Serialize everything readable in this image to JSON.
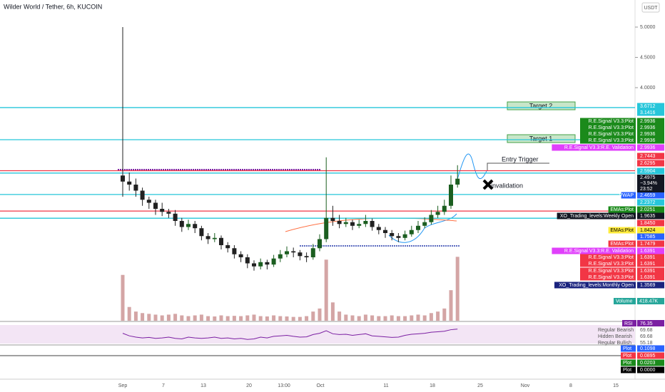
{
  "chart_data": {
    "type": "candlestick",
    "title": "Wilder World / Tether, 6h, KUCOIN",
    "currency": "USDT",
    "ylim": [
      0.153,
      5.447
    ],
    "yticks": [
      {
        "value": 4,
        "label": "4.0000"
      },
      {
        "value": 4.5,
        "label": "4.5000"
      },
      {
        "value": 5,
        "label": "5.0000"
      }
    ],
    "xtick_labels": [
      "Sep",
      "7",
      "13",
      "20",
      "13:00",
      "Oct",
      "11",
      "18",
      "25",
      "Nov",
      "8",
      "15"
    ],
    "up_color": "#1b5e20",
    "down_color": "#212121",
    "ohlc": [
      [
        2.55,
        5.0,
        2.2,
        2.45
      ],
      [
        2.45,
        2.6,
        2.3,
        2.4
      ],
      [
        2.4,
        2.5,
        2.2,
        2.3
      ],
      [
        2.3,
        2.35,
        2.05,
        2.15
      ],
      [
        2.15,
        2.2,
        2.0,
        2.1
      ],
      [
        2.1,
        2.15,
        1.9,
        2.0
      ],
      [
        2.0,
        2.1,
        1.88,
        1.95
      ],
      [
        1.95,
        2.0,
        1.85,
        1.92
      ],
      [
        1.92,
        1.98,
        1.72,
        1.8
      ],
      [
        1.8,
        1.85,
        1.62,
        1.7
      ],
      [
        1.7,
        1.82,
        1.65,
        1.75
      ],
      [
        1.75,
        1.8,
        1.6,
        1.68
      ],
      [
        1.68,
        1.72,
        1.48,
        1.55
      ],
      [
        1.55,
        1.6,
        1.42,
        1.5
      ],
      [
        1.5,
        1.6,
        1.45,
        1.52
      ],
      [
        1.52,
        1.56,
        1.33,
        1.4
      ],
      [
        1.4,
        1.45,
        1.28,
        1.35
      ],
      [
        1.35,
        1.4,
        1.18,
        1.25
      ],
      [
        1.25,
        1.3,
        1.12,
        1.2
      ],
      [
        1.2,
        1.25,
        1.02,
        1.1
      ],
      [
        1.1,
        1.15,
        0.98,
        1.05
      ],
      [
        1.05,
        1.18,
        1.0,
        1.12
      ],
      [
        1.12,
        1.16,
        1.0,
        1.08
      ],
      [
        1.08,
        1.24,
        1.04,
        1.18
      ],
      [
        1.18,
        1.32,
        1.12,
        1.25
      ],
      [
        1.25,
        1.38,
        1.2,
        1.3
      ],
      [
        1.3,
        1.36,
        1.2,
        1.28
      ],
      [
        1.28,
        1.32,
        1.15,
        1.22
      ],
      [
        1.22,
        1.28,
        1.12,
        1.2
      ],
      [
        1.2,
        1.42,
        1.16,
        1.35
      ],
      [
        1.35,
        1.58,
        1.3,
        1.5
      ],
      [
        1.5,
        2.85,
        1.45,
        1.85
      ],
      [
        1.85,
        2.05,
        1.72,
        1.8
      ],
      [
        1.8,
        1.9,
        1.68,
        1.75
      ],
      [
        1.75,
        1.85,
        1.7,
        1.78
      ],
      [
        1.78,
        1.82,
        1.65,
        1.72
      ],
      [
        1.72,
        1.82,
        1.68,
        1.75
      ],
      [
        1.75,
        1.9,
        1.7,
        1.8
      ],
      [
        1.8,
        1.84,
        1.64,
        1.7
      ],
      [
        1.7,
        1.75,
        1.58,
        1.65
      ],
      [
        1.65,
        1.7,
        1.52,
        1.6
      ],
      [
        1.6,
        1.65,
        1.48,
        1.55
      ],
      [
        1.55,
        1.6,
        1.45,
        1.52
      ],
      [
        1.52,
        1.64,
        1.48,
        1.58
      ],
      [
        1.58,
        1.72,
        1.54,
        1.65
      ],
      [
        1.65,
        1.8,
        1.6,
        1.72
      ],
      [
        1.72,
        1.86,
        1.68,
        1.78
      ],
      [
        1.78,
        1.98,
        1.74,
        1.9
      ],
      [
        1.9,
        2.05,
        1.85,
        1.95
      ],
      [
        1.95,
        2.15,
        1.9,
        2.05
      ],
      [
        2.05,
        2.55,
        2.0,
        2.4
      ],
      [
        2.4,
        2.72,
        2.35,
        2.4975
      ]
    ],
    "volume": {
      "name": "Volume",
      "label": "418.47K",
      "color": "#d4a5a5",
      "vlim": [
        0,
        420
      ],
      "values": [
        300,
        90,
        60,
        50,
        45,
        40,
        35,
        40,
        45,
        35,
        30,
        35,
        40,
        30,
        28,
        35,
        30,
        32,
        30,
        35,
        40,
        30,
        28,
        35,
        30,
        28,
        25,
        25,
        30,
        60,
        80,
        400,
        120,
        60,
        40,
        35,
        30,
        40,
        35,
        30,
        30,
        35,
        30,
        30,
        35,
        40,
        35,
        50,
        60,
        80,
        200,
        418.47
      ]
    },
    "rsi": {
      "name": "RSI",
      "value": 76.35,
      "color": "#7b1fa2",
      "lim": [
        20,
        95
      ],
      "values": [
        60,
        50,
        45,
        42,
        44,
        40,
        42,
        45,
        40,
        38,
        45,
        42,
        40,
        42,
        45,
        40,
        42,
        38,
        40,
        36,
        38,
        45,
        42,
        48,
        50,
        52,
        48,
        45,
        46,
        55,
        60,
        70,
        58,
        55,
        56,
        52,
        55,
        58,
        50,
        48,
        46,
        44,
        45,
        52,
        56,
        58,
        60,
        64,
        66,
        68,
        74,
        76.35
      ],
      "legend": [
        {
          "text": "Regular Bearish",
          "value": 69.68
        },
        {
          "text": "Hidden Bearish",
          "value": 69.68
        },
        {
          "text": "Regular Bullish",
          "value": 55.18
        }
      ]
    },
    "macd_tags": [
      {
        "text": "Plot",
        "value": 0.1098,
        "color": "#2962ff"
      },
      {
        "text": "Plot",
        "value": 0.0895,
        "color": "#f23645"
      },
      {
        "text": "Plot",
        "value": 0.0203,
        "color": "#1b8a1b"
      },
      {
        "text": "Plot",
        "value": 0,
        "label": "0.0000",
        "color": "#000000"
      }
    ],
    "last": {
      "value": 2.4975,
      "change": "−3.94%",
      "countdown": "23:52"
    },
    "tags": [
      {
        "value": 3.6712,
        "color": "#26c6da",
        "line_color": "#26c6da"
      },
      {
        "value": 3.1416,
        "color": "#26c6da",
        "line_color": "#26c6da"
      },
      {
        "text": "R.E.Signal V3.3:Plot",
        "value": 2.9936,
        "color": "#1b8a1b"
      },
      {
        "text": "R.E.Signal V3.3:Plot",
        "value": 2.9936,
        "color": "#1b8a1b"
      },
      {
        "text": "R.E.Signal V3.3:Plot",
        "value": 2.9936,
        "color": "#1b8a1b"
      },
      {
        "text": "R.E.Signal V3.3:Plot",
        "value": 2.9936,
        "color": "#1b8a1b"
      },
      {
        "text": "R.E.Signal V3.3:R.E. Validation",
        "value": 2.9936,
        "color": "#e040fb"
      },
      {
        "value": 2.7443,
        "color": "#f23645"
      },
      {
        "value": 2.6295,
        "color": "#f23645",
        "line_color": "#f23645"
      },
      {
        "value": 2.5904,
        "color": "#26c6da",
        "line_color": "#26c6da"
      },
      {
        "text": "VWAP",
        "value": 2.4659,
        "color": "#2962ff"
      },
      {
        "value": 2.2372,
        "color": "#26c6da",
        "line_color": "#26c6da"
      },
      {
        "text": "EMAs:Plot",
        "value": 2.0251,
        "color": "#1b8a1b"
      },
      {
        "text": "XO_Trading_levels:Weekly Open",
        "value": 1.9635,
        "color": "#131722",
        "line_color": "#f23645"
      },
      {
        "value": 1.845,
        "label": "1.8450",
        "color": "#f23645",
        "line_color": "#26c6da"
      },
      {
        "text": "EMAs:Plot",
        "value": 1.8424,
        "color": "#ffeb3b"
      },
      {
        "value": 1.7585,
        "color": "#2962ff"
      },
      {
        "text": "EMAs:Plot",
        "value": 1.7479,
        "color": "#f23645"
      },
      {
        "text": "R.E.Signal V3.3:R.E. Validation",
        "value": 1.6391,
        "color": "#e040fb"
      },
      {
        "text": "R.E.Signal V3.3:Plot",
        "value": 1.6391,
        "color": "#f23645"
      },
      {
        "text": "R.E.Signal V3.3:Plot",
        "value": 1.6391,
        "color": "#f23645"
      },
      {
        "text": "R.E.Signal V3.3:Plot",
        "value": 1.6391,
        "color": "#f23645"
      },
      {
        "text": "R.E.Signal V3.3:Plot",
        "value": 1.6391,
        "color": "#f23645"
      },
      {
        "text": "XO_Trading_levels:Monthly Open",
        "value": 1.3569,
        "color": "#1a237e"
      }
    ],
    "annotations": {
      "target2": "Target 2",
      "target1": "Target 1",
      "entry": "Entry Trigger",
      "invalidation": "invalidation"
    }
  }
}
